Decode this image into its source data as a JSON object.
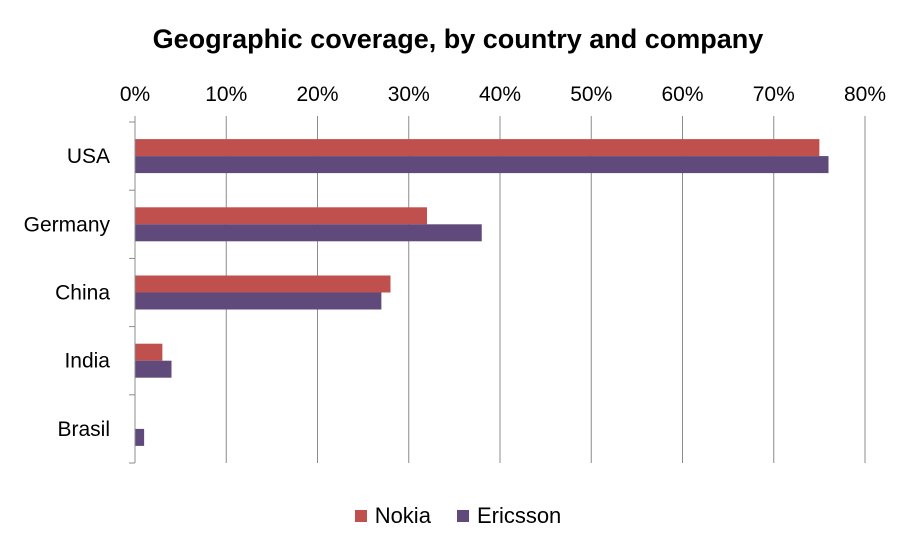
{
  "chart_data": {
    "type": "bar",
    "orientation": "horizontal",
    "title": "Geographic coverage, by country and company",
    "categories": [
      "USA",
      "Germany",
      "China",
      "India",
      "Brasil"
    ],
    "series": [
      {
        "name": "Nokia",
        "color": "#c0504d",
        "values": [
          75,
          32,
          28,
          3,
          0
        ]
      },
      {
        "name": "Ericsson",
        "color": "#604a7b",
        "values": [
          76,
          38,
          27,
          4,
          1
        ]
      }
    ],
    "xlim": [
      0,
      80
    ],
    "xticks": [
      0,
      10,
      20,
      30,
      40,
      50,
      60,
      70,
      80
    ],
    "tick_format": "percent",
    "x_axis_position": "top",
    "grid": true,
    "legend": "bottom"
  }
}
